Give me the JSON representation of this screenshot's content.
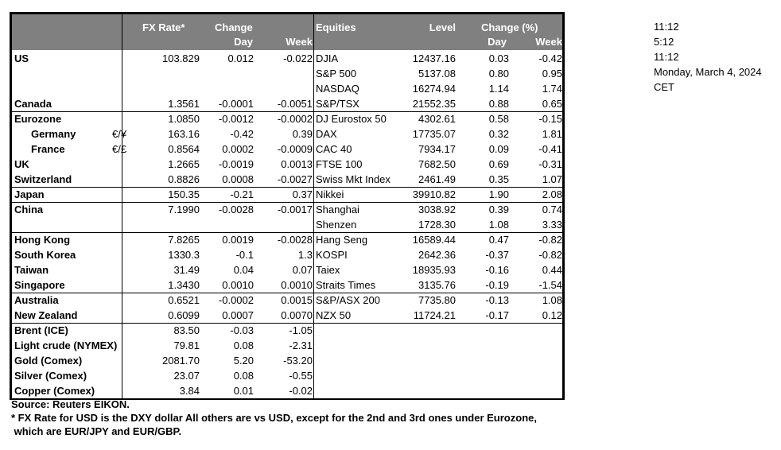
{
  "header": {
    "fx_rate": "FX Rate*",
    "change": "Change",
    "day": "Day",
    "week": "Week",
    "equities": "Equities",
    "level": "Level",
    "change_pct": "Change (%)",
    "eq_day": "Day",
    "eq_week": "Week"
  },
  "rows": [
    {
      "country": "US",
      "unit": "",
      "fx": "103.829",
      "day": "0.012",
      "week": "-0.022",
      "equity": "DJIA",
      "level": "12437.16",
      "eq_day": "0.03",
      "eq_week": "-0.42"
    },
    {
      "country": "",
      "unit": "",
      "fx": "",
      "day": "",
      "week": "",
      "equity": "S&P 500",
      "level": "5137.08",
      "eq_day": "0.80",
      "eq_week": "0.95"
    },
    {
      "country": "",
      "unit": "",
      "fx": "",
      "day": "",
      "week": "",
      "equity": "NASDAQ",
      "level": "16274.94",
      "eq_day": "1.14",
      "eq_week": "1.74"
    },
    {
      "country": "Canada",
      "unit": "",
      "fx": "1.3561",
      "day": "-0.0001",
      "week": "-0.0051",
      "equity": "S&P/TSX",
      "level": "21552.35",
      "eq_day": "0.88",
      "eq_week": "0.65",
      "sep": true
    },
    {
      "country": "Eurozone",
      "unit": "",
      "fx": "1.0850",
      "day": "-0.0012",
      "week": "-0.0002",
      "equity": "DJ Eurostox 50",
      "level": "4302.61",
      "eq_day": "0.58",
      "eq_week": "-0.15"
    },
    {
      "country": "Germany",
      "indent": true,
      "unit": "€/¥",
      "fx": "163.16",
      "day": "-0.42",
      "week": "0.39",
      "equity": "DAX",
      "level": "17735.07",
      "eq_day": "0.32",
      "eq_week": "1.81"
    },
    {
      "country": "France",
      "indent": true,
      "unit": "€/£",
      "fx": "0.8564",
      "day": "0.0002",
      "week": "-0.0009",
      "equity": "CAC 40",
      "level": "7934.17",
      "eq_day": "0.09",
      "eq_week": "-0.41"
    },
    {
      "country": "UK",
      "unit": "",
      "fx": "1.2665",
      "day": "-0.0019",
      "week": "0.0013",
      "equity": "FTSE 100",
      "level": "7682.50",
      "eq_day": "0.69",
      "eq_week": "-0.31"
    },
    {
      "country": "Switzerland",
      "unit": "",
      "fx": "0.8826",
      "day": "0.0008",
      "week": "-0.0027",
      "equity": "Swiss Mkt Index",
      "level": "2461.49",
      "eq_day": "0.35",
      "eq_week": "1.07",
      "sep": true
    },
    {
      "country": "Japan",
      "unit": "",
      "fx": "150.35",
      "day": "-0.21",
      "week": "0.37",
      "equity": "Nikkei",
      "level": "39910.82",
      "eq_day": "1.90",
      "eq_week": "2.08",
      "sep": true
    },
    {
      "country": "China",
      "unit": "",
      "fx": "7.1990",
      "day": "-0.0028",
      "week": "-0.0017",
      "equity": "Shanghai",
      "level": "3038.92",
      "eq_day": "0.39",
      "eq_week": "0.74"
    },
    {
      "country": "",
      "unit": "",
      "fx": "",
      "day": "",
      "week": "",
      "equity": "Shenzen",
      "level": "1728.30",
      "eq_day": "1.08",
      "eq_week": "3.33",
      "sep": true
    },
    {
      "country": "Hong Kong",
      "unit": "",
      "fx": "7.8265",
      "day": "0.0019",
      "week": "-0.0028",
      "equity": "Hang Seng",
      "level": "16589.44",
      "eq_day": "0.47",
      "eq_week": "-0.82"
    },
    {
      "country": "South Korea",
      "unit": "",
      "fx": "1330.3",
      "day": "-0.1",
      "week": "1.3",
      "equity": "KOSPI",
      "level": "2642.36",
      "eq_day": "-0.37",
      "eq_week": "-0.82"
    },
    {
      "country": "Taiwan",
      "unit": "",
      "fx": "31.49",
      "day": "0.04",
      "week": "0.07",
      "equity": "Taiex",
      "level": "18935.93",
      "eq_day": "-0.16",
      "eq_week": "0.44"
    },
    {
      "country": "Singapore",
      "unit": "",
      "fx": "1.3430",
      "day": "0.0010",
      "week": "0.0010",
      "equity": "Straits Times",
      "level": "3135.76",
      "eq_day": "-0.19",
      "eq_week": "-1.54",
      "sep": true
    },
    {
      "country": "Australia",
      "unit": "",
      "fx": "0.6521",
      "day": "-0.0002",
      "week": "0.0015",
      "equity": "S&P/ASX  200",
      "level": "7735.80",
      "eq_day": "-0.13",
      "eq_week": "1.08"
    },
    {
      "country": "New Zealand",
      "unit": "",
      "fx": "0.6099",
      "day": "0.0007",
      "week": "0.0070",
      "equity": "NZX 50",
      "level": "11724.21",
      "eq_day": "-0.17",
      "eq_week": "0.12",
      "sep": true
    },
    {
      "country": "Brent (ICE)",
      "unit": "",
      "fx": "83.50",
      "day": "-0.03",
      "week": "-1.05",
      "equity": "",
      "level": "",
      "eq_day": "",
      "eq_week": ""
    },
    {
      "country": "Light crude (NYMEX)",
      "unit": "",
      "fx": "79.81",
      "day": "0.08",
      "week": "-2.31",
      "equity": "",
      "level": "",
      "eq_day": "",
      "eq_week": ""
    },
    {
      "country": "Gold (Comex)",
      "unit": "",
      "fx": "2081.70",
      "day": "5.20",
      "week": "-53.20",
      "equity": "",
      "level": "",
      "eq_day": "",
      "eq_week": ""
    },
    {
      "country": "Silver (Comex)",
      "unit": "",
      "fx": "23.07",
      "day": "0.08",
      "week": "-0.55",
      "equity": "",
      "level": "",
      "eq_day": "",
      "eq_week": ""
    },
    {
      "country": "Copper (Comex)",
      "unit": "",
      "fx": "3.84",
      "day": "0.01",
      "week": "-0.02",
      "equity": "",
      "level": "",
      "eq_day": "",
      "eq_week": ""
    }
  ],
  "notes": {
    "source": "Source:  Reuters EIKON.",
    "footnote1": "* FX Rate for USD is the DXY dollar  All others are vs USD, except for the 2nd and 3rd ones under Eurozone,",
    "footnote2": " which are EUR/JPY and EUR/GBP."
  },
  "side": {
    "time1": "11:12",
    "time2": "5:12",
    "time3": "11:12",
    "date": "Monday, March 4, 2024",
    "tz": "CET"
  },
  "colors": {
    "header_bg": "#808080",
    "header_text": "#ffffff"
  }
}
